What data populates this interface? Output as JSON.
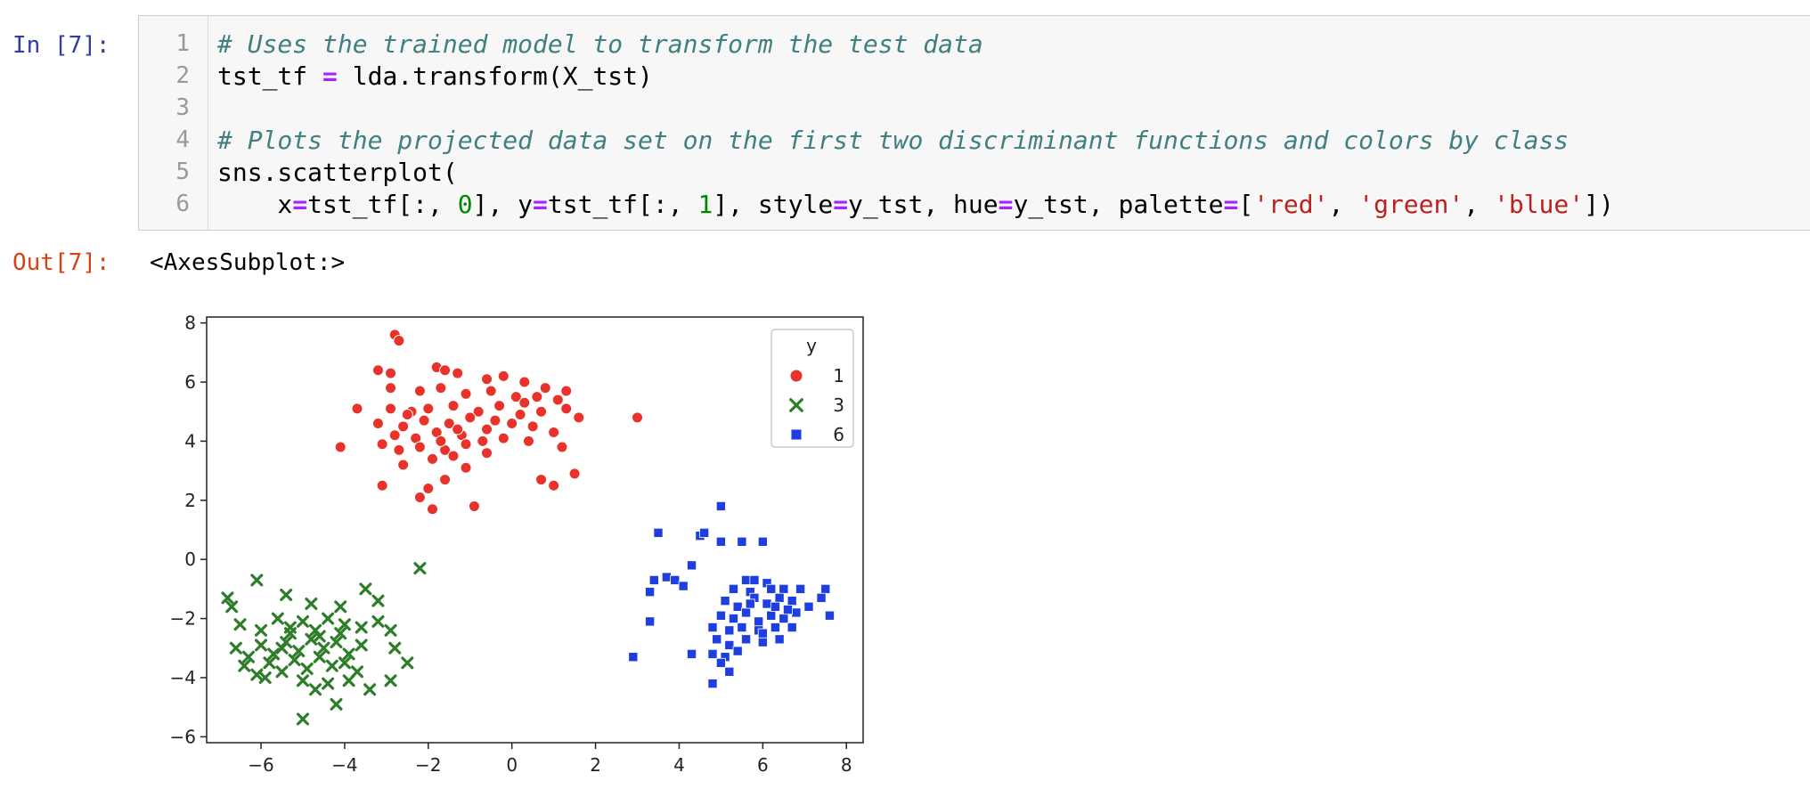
{
  "cell": {
    "in_prompt": "In [7]:",
    "out_prompt": "Out[7]:",
    "output_text": "<AxesSubplot:>",
    "line_numbers": [
      "1",
      "2",
      "3",
      "4",
      "5",
      "6"
    ],
    "code": {
      "l1_comment": "# Uses the trained model to transform the test data",
      "l2_a": "tst_tf ",
      "l2_op": "=",
      "l2_b": " lda.transform(X_tst)",
      "l4_comment": "# Plots the projected data set on the first two discriminant functions and colors by class",
      "l5": "sns.scatterplot(",
      "l6_indent": "    x",
      "l6_eq1": "=",
      "l6_a": "tst_tf[:, ",
      "l6_n0": "0",
      "l6_b": "], y",
      "l6_eq2": "=",
      "l6_c": "tst_tf[:, ",
      "l6_n1": "1",
      "l6_d": "], style",
      "l6_eq3": "=",
      "l6_e": "y_tst, hue",
      "l6_eq4": "=",
      "l6_f": "y_tst, palette",
      "l6_eq5": "=",
      "l6_g": "[",
      "l6_s1": "'red'",
      "l6_h": ", ",
      "l6_s2": "'green'",
      "l6_i": ", ",
      "l6_s3": "'blue'",
      "l6_j": "])"
    }
  },
  "chart_data": {
    "type": "scatter",
    "xlim": [
      -7.3,
      8.4
    ],
    "ylim": [
      -6.2,
      8.2
    ],
    "xticks": [
      -6,
      -4,
      -2,
      0,
      2,
      4,
      6,
      8
    ],
    "yticks": [
      -6,
      -4,
      -2,
      0,
      2,
      4,
      6,
      8
    ],
    "xtick_labels": [
      "−6",
      "−4",
      "−2",
      "0",
      "2",
      "4",
      "6",
      "8"
    ],
    "ytick_labels": [
      "−6",
      "−4",
      "−2",
      "0",
      "2",
      "4",
      "6",
      "8"
    ],
    "grid": false,
    "legend": {
      "title": "y",
      "placement": "top-right"
    },
    "series": [
      {
        "name": "1",
        "marker": "circle",
        "color": "#e8322a",
        "points": [
          [
            -2.8,
            7.6
          ],
          [
            -2.7,
            7.4
          ],
          [
            -3.2,
            6.4
          ],
          [
            -2.9,
            6.3
          ],
          [
            -1.8,
            6.5
          ],
          [
            -1.6,
            6.4
          ],
          [
            -1.3,
            6.3
          ],
          [
            -0.6,
            6.1
          ],
          [
            -0.2,
            6.2
          ],
          [
            0.3,
            6.0
          ],
          [
            0.8,
            5.8
          ],
          [
            1.3,
            5.7
          ],
          [
            -2.9,
            5.8
          ],
          [
            -2.2,
            5.7
          ],
          [
            -1.7,
            5.8
          ],
          [
            -1.1,
            5.6
          ],
          [
            -0.5,
            5.7
          ],
          [
            0.1,
            5.5
          ],
          [
            0.6,
            5.5
          ],
          [
            1.1,
            5.4
          ],
          [
            1.3,
            5.1
          ],
          [
            -3.7,
            5.1
          ],
          [
            -2.9,
            5.1
          ],
          [
            -2.4,
            5.0
          ],
          [
            -2.0,
            5.1
          ],
          [
            -1.4,
            5.2
          ],
          [
            -0.8,
            5.0
          ],
          [
            -0.3,
            5.2
          ],
          [
            0.2,
            4.9
          ],
          [
            0.7,
            5.0
          ],
          [
            1.6,
            4.8
          ],
          [
            -3.2,
            4.6
          ],
          [
            -2.6,
            4.5
          ],
          [
            -2.1,
            4.7
          ],
          [
            -1.5,
            4.6
          ],
          [
            -1.0,
            4.8
          ],
          [
            -0.6,
            4.4
          ],
          [
            0.0,
            4.6
          ],
          [
            0.5,
            4.5
          ],
          [
            1.0,
            4.3
          ],
          [
            -2.8,
            4.2
          ],
          [
            -2.3,
            4.1
          ],
          [
            -1.8,
            4.3
          ],
          [
            -1.2,
            4.2
          ],
          [
            -0.7,
            4.0
          ],
          [
            -0.2,
            4.1
          ],
          [
            0.4,
            4.0
          ],
          [
            -4.1,
            3.8
          ],
          [
            -3.1,
            3.9
          ],
          [
            -2.7,
            3.7
          ],
          [
            -2.2,
            3.8
          ],
          [
            -1.6,
            3.7
          ],
          [
            -1.1,
            3.9
          ],
          [
            1.2,
            3.8
          ],
          [
            -1.9,
            3.4
          ],
          [
            -1.4,
            3.5
          ],
          [
            -0.6,
            3.6
          ],
          [
            -1.1,
            3.1
          ],
          [
            -2.6,
            3.2
          ],
          [
            -1.6,
            2.7
          ],
          [
            0.7,
            2.7
          ],
          [
            1.0,
            2.5
          ],
          [
            1.5,
            2.9
          ],
          [
            -3.1,
            2.5
          ],
          [
            -2.0,
            2.4
          ],
          [
            -2.2,
            2.1
          ],
          [
            -0.9,
            1.8
          ],
          [
            -1.9,
            1.7
          ],
          [
            3.0,
            4.8
          ],
          [
            -2.5,
            4.9
          ],
          [
            -1.3,
            4.4
          ],
          [
            -0.4,
            4.7
          ],
          [
            0.3,
            5.3
          ],
          [
            -1.7,
            4.0
          ]
        ]
      },
      {
        "name": "3",
        "marker": "x",
        "color": "#2e7d28",
        "points": [
          [
            -6.8,
            -1.3
          ],
          [
            -6.7,
            -1.6
          ],
          [
            -6.1,
            -0.7
          ],
          [
            -2.2,
            -0.3
          ],
          [
            -3.5,
            -1.0
          ],
          [
            -3.2,
            -1.4
          ],
          [
            -5.4,
            -1.2
          ],
          [
            -4.8,
            -1.5
          ],
          [
            -4.1,
            -1.6
          ],
          [
            -6.5,
            -2.2
          ],
          [
            -6.0,
            -2.4
          ],
          [
            -5.6,
            -2.0
          ],
          [
            -5.3,
            -2.3
          ],
          [
            -5.0,
            -2.1
          ],
          [
            -4.7,
            -2.4
          ],
          [
            -4.4,
            -2.0
          ],
          [
            -4.0,
            -2.2
          ],
          [
            -3.6,
            -2.3
          ],
          [
            -3.2,
            -2.1
          ],
          [
            -2.9,
            -2.4
          ],
          [
            -6.6,
            -3.0
          ],
          [
            -6.3,
            -3.3
          ],
          [
            -6.0,
            -2.9
          ],
          [
            -5.7,
            -3.2
          ],
          [
            -5.4,
            -2.8
          ],
          [
            -5.1,
            -3.1
          ],
          [
            -4.8,
            -2.7
          ],
          [
            -4.5,
            -3.0
          ],
          [
            -4.2,
            -2.8
          ],
          [
            -3.9,
            -3.2
          ],
          [
            -3.6,
            -2.9
          ],
          [
            -2.8,
            -3.0
          ],
          [
            -6.4,
            -3.6
          ],
          [
            -6.1,
            -3.9
          ],
          [
            -5.8,
            -3.5
          ],
          [
            -5.5,
            -3.8
          ],
          [
            -5.2,
            -3.4
          ],
          [
            -4.9,
            -3.7
          ],
          [
            -4.6,
            -3.3
          ],
          [
            -4.3,
            -3.6
          ],
          [
            -4.0,
            -3.5
          ],
          [
            -3.7,
            -3.8
          ],
          [
            -2.5,
            -3.5
          ],
          [
            -5.9,
            -4.0
          ],
          [
            -5.0,
            -4.1
          ],
          [
            -4.4,
            -4.2
          ],
          [
            -3.9,
            -4.1
          ],
          [
            -2.9,
            -4.1
          ],
          [
            -4.2,
            -4.9
          ],
          [
            -3.4,
            -4.4
          ],
          [
            -5.0,
            -5.4
          ],
          [
            -4.7,
            -4.4
          ],
          [
            -5.5,
            -3.0
          ],
          [
            -4.6,
            -2.6
          ],
          [
            -5.3,
            -2.5
          ],
          [
            -4.1,
            -2.5
          ]
        ]
      },
      {
        "name": "6",
        "marker": "square",
        "color": "#1f3ee0",
        "points": [
          [
            5.0,
            1.8
          ],
          [
            3.5,
            0.9
          ],
          [
            4.5,
            0.8
          ],
          [
            4.6,
            0.9
          ],
          [
            5.0,
            0.6
          ],
          [
            5.5,
            0.6
          ],
          [
            6.0,
            0.6
          ],
          [
            4.3,
            -0.2
          ],
          [
            3.4,
            -0.7
          ],
          [
            3.7,
            -0.6
          ],
          [
            3.9,
            -0.7
          ],
          [
            4.1,
            -0.9
          ],
          [
            3.3,
            -1.1
          ],
          [
            5.6,
            -0.7
          ],
          [
            5.8,
            -0.7
          ],
          [
            6.1,
            -0.8
          ],
          [
            5.3,
            -1.0
          ],
          [
            5.7,
            -1.1
          ],
          [
            6.2,
            -1.0
          ],
          [
            6.5,
            -1.0
          ],
          [
            6.9,
            -1.0
          ],
          [
            7.5,
            -1.0
          ],
          [
            5.1,
            -1.4
          ],
          [
            5.4,
            -1.6
          ],
          [
            5.8,
            -1.3
          ],
          [
            6.1,
            -1.5
          ],
          [
            6.4,
            -1.3
          ],
          [
            6.7,
            -1.4
          ],
          [
            7.1,
            -1.6
          ],
          [
            7.4,
            -1.3
          ],
          [
            5.0,
            -1.9
          ],
          [
            5.3,
            -2.0
          ],
          [
            5.6,
            -1.8
          ],
          [
            5.9,
            -2.1
          ],
          [
            6.2,
            -1.9
          ],
          [
            6.5,
            -2.0
          ],
          [
            6.8,
            -1.8
          ],
          [
            7.6,
            -1.9
          ],
          [
            3.3,
            -2.1
          ],
          [
            4.8,
            -2.3
          ],
          [
            5.2,
            -2.4
          ],
          [
            5.5,
            -2.3
          ],
          [
            5.9,
            -2.4
          ],
          [
            6.3,
            -2.3
          ],
          [
            6.7,
            -2.3
          ],
          [
            4.9,
            -2.7
          ],
          [
            5.2,
            -2.9
          ],
          [
            5.6,
            -2.7
          ],
          [
            6.0,
            -2.8
          ],
          [
            6.4,
            -2.7
          ],
          [
            4.8,
            -3.2
          ],
          [
            5.1,
            -3.3
          ],
          [
            5.4,
            -3.1
          ],
          [
            2.9,
            -3.3
          ],
          [
            4.3,
            -3.2
          ],
          [
            5.0,
            -3.5
          ],
          [
            5.2,
            -3.8
          ],
          [
            4.8,
            -4.2
          ],
          [
            6.0,
            -2.5
          ],
          [
            6.3,
            -1.6
          ],
          [
            5.7,
            -1.5
          ],
          [
            6.6,
            -1.7
          ]
        ]
      }
    ]
  }
}
